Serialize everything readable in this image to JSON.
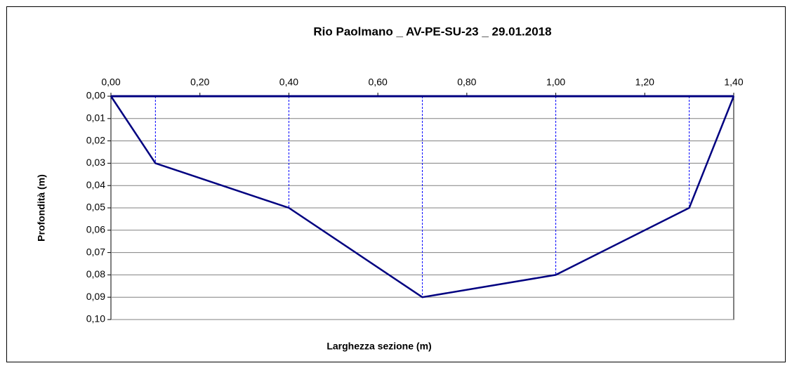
{
  "chart_data": {
    "type": "line",
    "title": "Rio Paolmano _ AV-PE-SU-23 _ 29.01.2018",
    "x_label": "Larghezza sezione (m)",
    "y_label": "Profondità (m)",
    "x": [
      0,
      0.1,
      0.4,
      0.7,
      1.0,
      1.3,
      1.4
    ],
    "series": [
      {
        "color": "#000080",
        "values": [
          0,
          0.03,
          0.05,
          0.09,
          0.08,
          0.05,
          0
        ]
      }
    ],
    "drop_lines": true,
    "xlim": [
      0,
      1.4
    ],
    "xticks": [
      {
        "value": 0,
        "label": "0,00"
      },
      {
        "value": 0.2,
        "label": "0,20"
      },
      {
        "value": 0.4,
        "label": "0,40"
      },
      {
        "value": 0.6,
        "label": "0,60"
      },
      {
        "value": 0.8,
        "label": "0,80"
      },
      {
        "value": 1.0,
        "label": "1,00"
      },
      {
        "value": 1.2,
        "label": "1,20"
      },
      {
        "value": 1.4,
        "label": "1,40"
      }
    ],
    "x_axis_position": "top",
    "ylim": [
      0,
      0.1
    ],
    "y_inverted": true,
    "yticks": [
      {
        "value": 0,
        "label": "0,00"
      },
      {
        "value": 0.01,
        "label": "0,01"
      },
      {
        "value": 0.02,
        "label": "0,02"
      },
      {
        "value": 0.03,
        "label": "0,03"
      },
      {
        "value": 0.04,
        "label": "0,04"
      },
      {
        "value": 0.05,
        "label": "0,05"
      },
      {
        "value": 0.06,
        "label": "0,06"
      },
      {
        "value": 0.07,
        "label": "0,07"
      },
      {
        "value": 0.08,
        "label": "0,08"
      },
      {
        "value": 0.09,
        "label": "0,09"
      },
      {
        "value": 0.1,
        "label": "0,10"
      }
    ],
    "grid": true
  }
}
